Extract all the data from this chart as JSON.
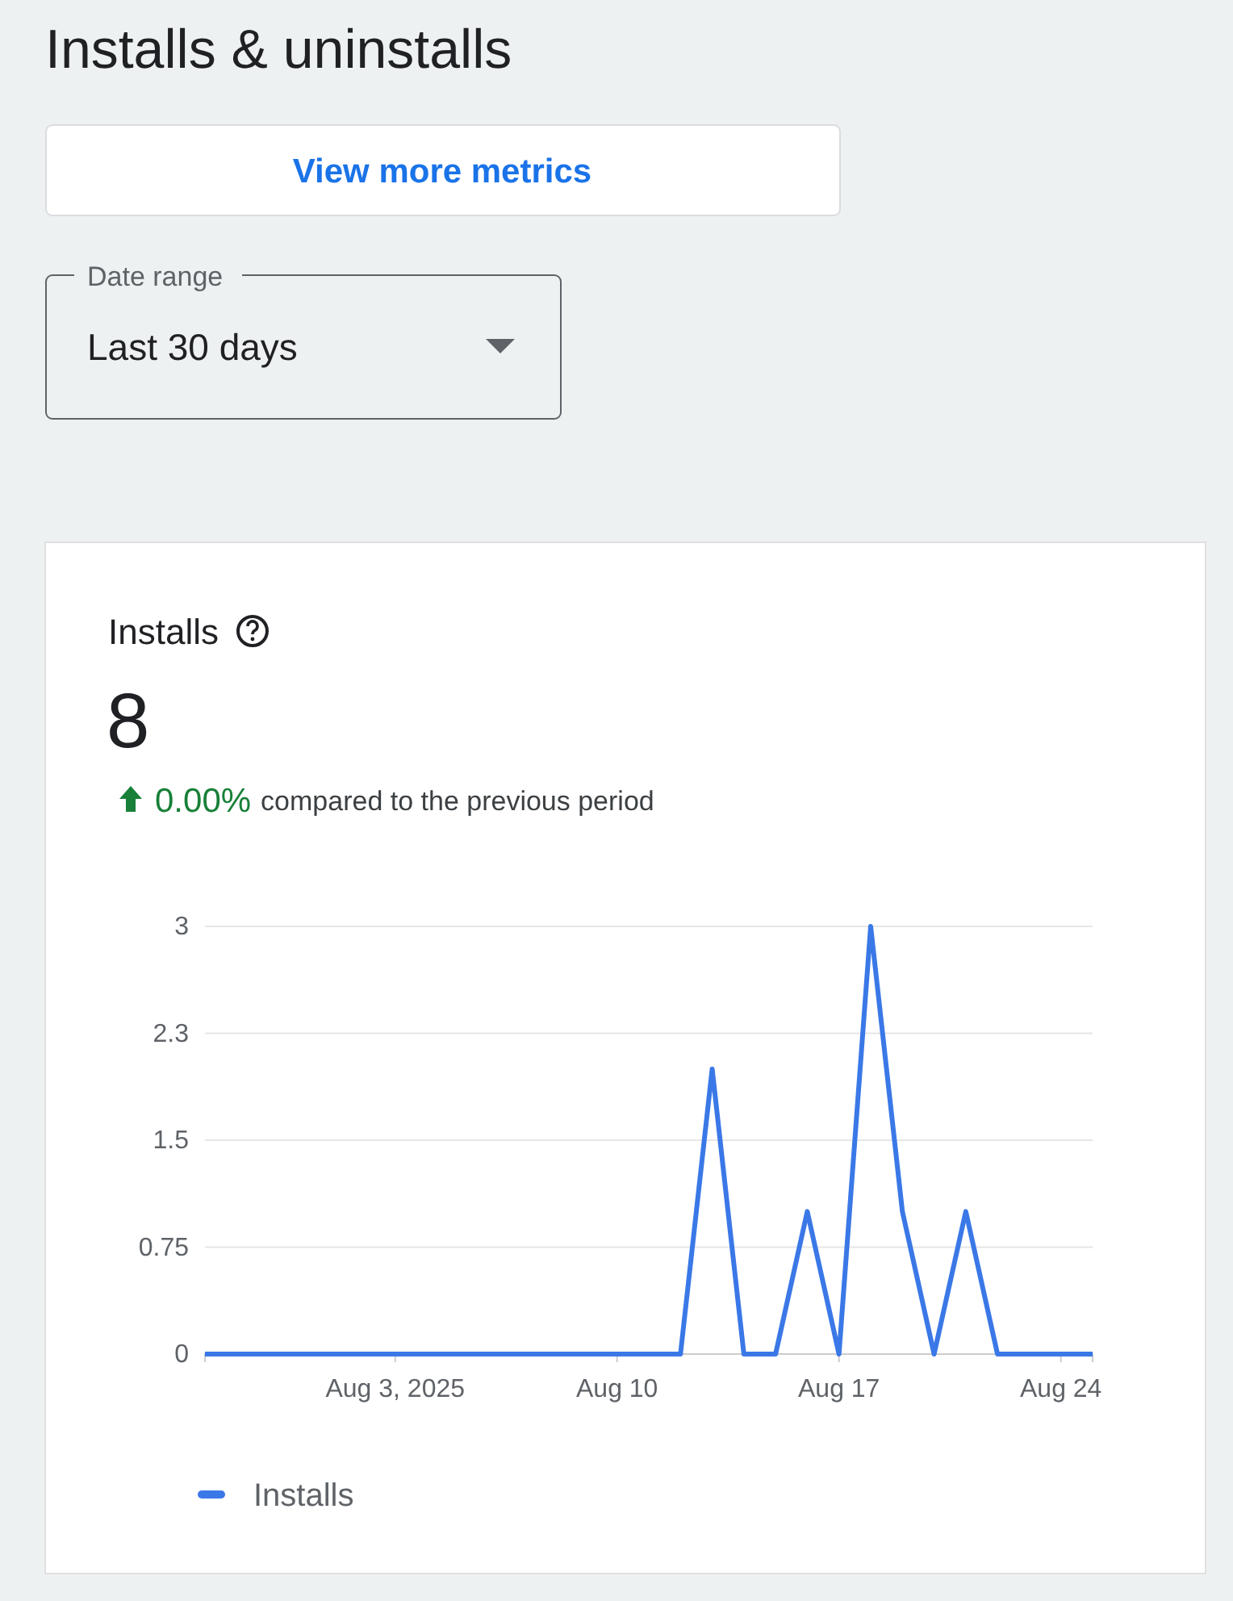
{
  "chart_data": {
    "type": "line",
    "title": "Installs",
    "annotations": [
      "Installs & uninstalls",
      "View more metrics",
      "Date range",
      "Last 30 days",
      "8",
      "0.00%",
      "compared to the previous period"
    ],
    "x": [
      "2025-07-28",
      "2025-07-29",
      "2025-07-30",
      "2025-07-31",
      "2025-08-01",
      "2025-08-02",
      "2025-08-03",
      "2025-08-04",
      "2025-08-05",
      "2025-08-06",
      "2025-08-07",
      "2025-08-08",
      "2025-08-09",
      "2025-08-10",
      "2025-08-11",
      "2025-08-12",
      "2025-08-13",
      "2025-08-14",
      "2025-08-15",
      "2025-08-16",
      "2025-08-17",
      "2025-08-18",
      "2025-08-19",
      "2025-08-20",
      "2025-08-21",
      "2025-08-22",
      "2025-08-23",
      "2025-08-24",
      "2025-08-25"
    ],
    "series": [
      {
        "name": "Installs",
        "color": "#3b78e7",
        "values": [
          0,
          0,
          0,
          0,
          0,
          0,
          0,
          0,
          0,
          0,
          0,
          0,
          0,
          0,
          0,
          0,
          2,
          0,
          0,
          1,
          0,
          3,
          1,
          0,
          1,
          0,
          0,
          0,
          0
        ]
      }
    ],
    "xlim": [
      "2025-07-28",
      "2025-08-25"
    ],
    "xticks": [
      {
        "value": "2025-08-03",
        "label": "Aug 3, 2025"
      },
      {
        "value": "2025-08-10",
        "label": "Aug 10"
      },
      {
        "value": "2025-08-17",
        "label": "Aug 17"
      },
      {
        "value": "2025-08-24",
        "label": "Aug 24"
      }
    ],
    "ylim": [
      0,
      3
    ],
    "yticks": [
      0,
      0.75,
      1.5,
      {
        "value": 2.25,
        "label": "2.3"
      },
      3
    ],
    "grid": "y",
    "legend": "bottom",
    "marker": "none",
    "line_style": "solid"
  }
}
